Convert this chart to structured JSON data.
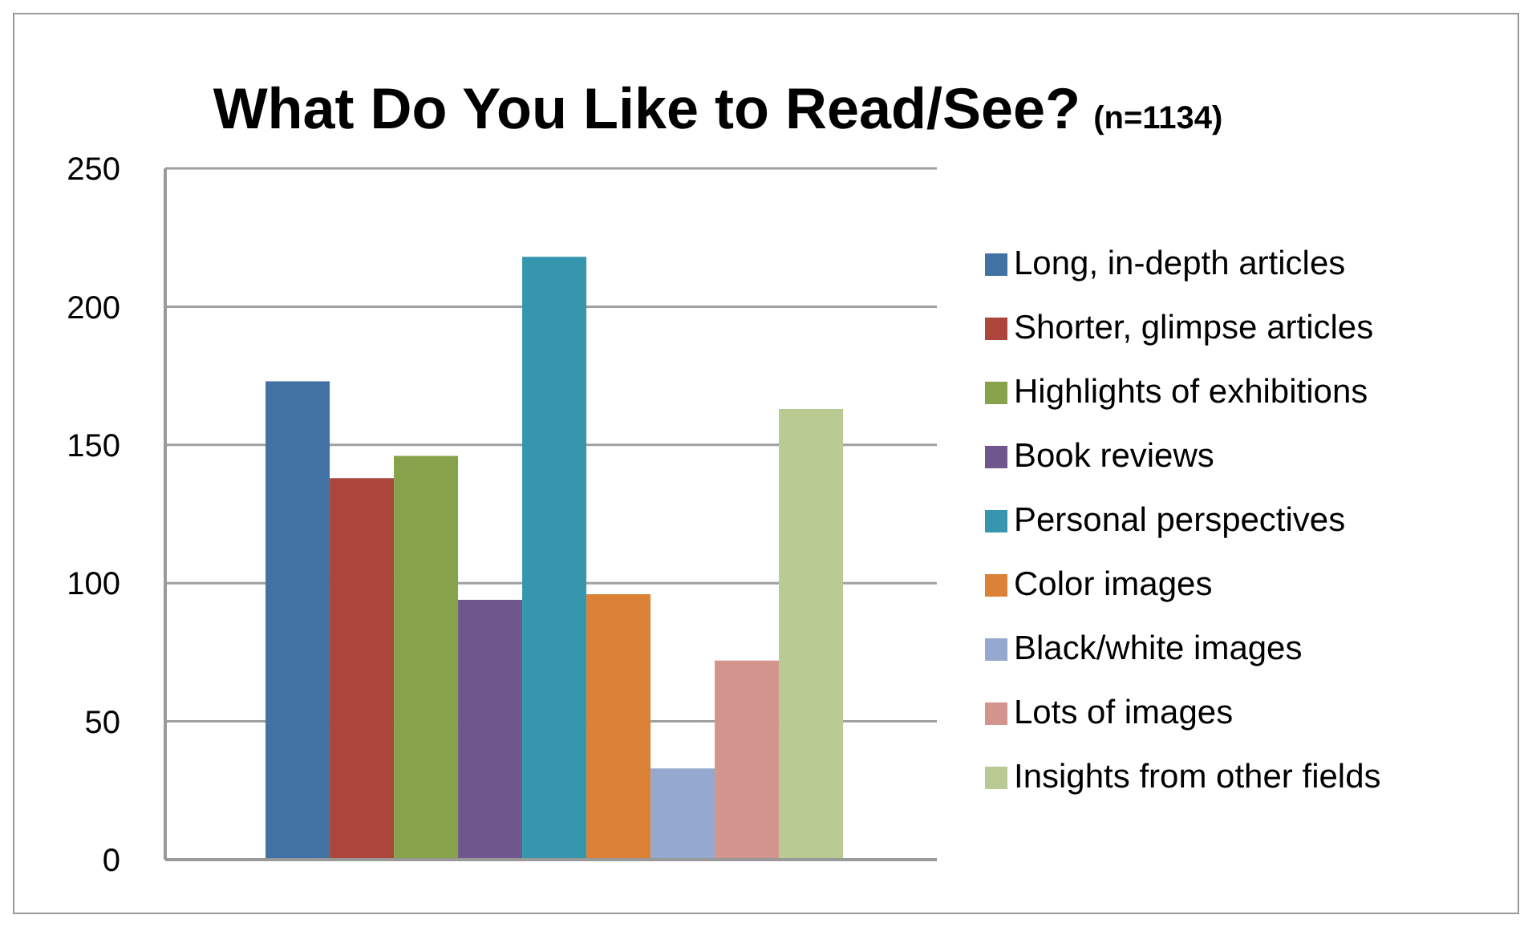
{
  "chart_data": {
    "type": "bar",
    "title": "What Do You Like to Read/See?",
    "subtitle": "(n=1134)",
    "categories": [
      null
    ],
    "series": [
      {
        "name": "Long, in-depth articles",
        "color": "#4272a4",
        "values": [
          173
        ]
      },
      {
        "name": "Shorter, glimpse articles",
        "color": "#ac463d",
        "values": [
          138
        ]
      },
      {
        "name": "Highlights of exhibitions",
        "color": "#87a24a",
        "values": [
          146
        ]
      },
      {
        "name": "Book reviews",
        "color": "#6f578d",
        "values": [
          94
        ]
      },
      {
        "name": "Personal perspectives",
        "color": "#3696ae",
        "values": [
          218
        ]
      },
      {
        "name": "Color images",
        "color": "#db8236",
        "values": [
          96
        ]
      },
      {
        "name": "Black/white images",
        "color": "#95a8cd",
        "values": [
          33
        ]
      },
      {
        "name": "Lots of images",
        "color": "#d3948e",
        "values": [
          72
        ]
      },
      {
        "name": "Insights from other fields",
        "color": "#b9cb93",
        "values": [
          163
        ]
      }
    ],
    "ylim": [
      0,
      250
    ],
    "yticks": [
      0,
      50,
      100,
      150,
      200,
      250
    ],
    "grid": "y",
    "legend": "right",
    "tick_labels": "y"
  }
}
